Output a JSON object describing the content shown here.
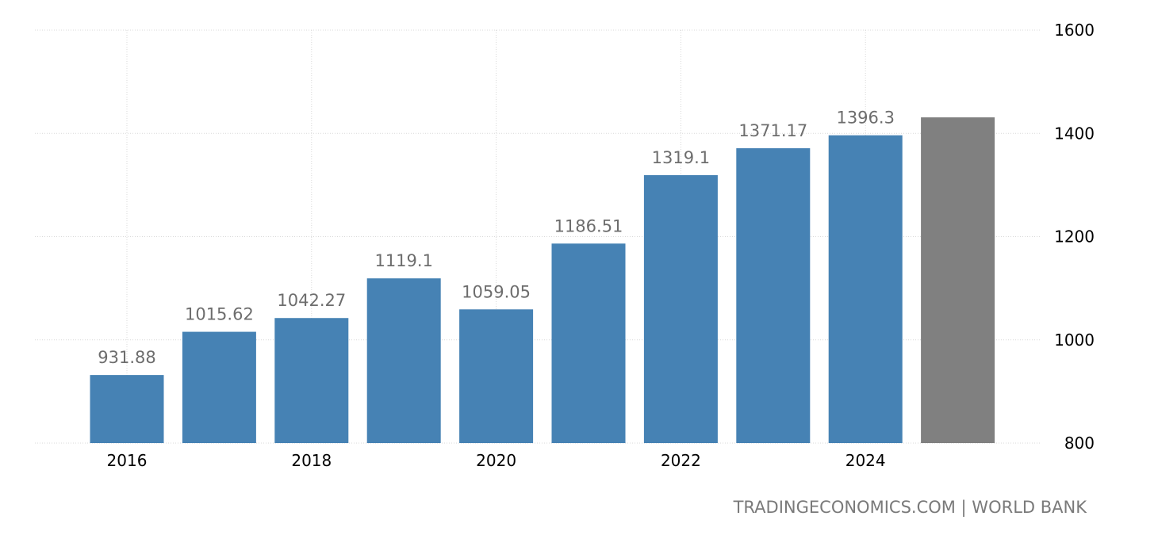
{
  "chart_data": {
    "type": "bar",
    "categories": [
      "2016",
      "2017",
      "2018",
      "2019",
      "2020",
      "2021",
      "2022",
      "2023",
      "2024",
      "2025"
    ],
    "values": [
      931.88,
      1015.62,
      1042.27,
      1119.1,
      1059.05,
      1186.51,
      1319.1,
      1371.17,
      1396.3,
      1431
    ],
    "data_labels": [
      "931.88",
      "1015.62",
      "1042.27",
      "1119.1",
      "1059.05",
      "1186.51",
      "1319.1",
      "1371.17",
      "1396.3",
      ""
    ],
    "x_tick_labels": [
      "2016",
      "",
      "2018",
      "",
      "2020",
      "",
      "2022",
      "",
      "2024",
      ""
    ],
    "y_ticks": [
      800,
      1000,
      1200,
      1400,
      1600
    ],
    "ylim": [
      800,
      1600
    ],
    "y_axis_position": "right",
    "grid": true,
    "title": "",
    "xlabel": "",
    "ylabel": "",
    "colors": {
      "bar": "#4682b4",
      "forecast_bar": "#808080"
    }
  },
  "footer": {
    "source": "TRADINGECONOMICS.COM | WORLD BANK"
  }
}
